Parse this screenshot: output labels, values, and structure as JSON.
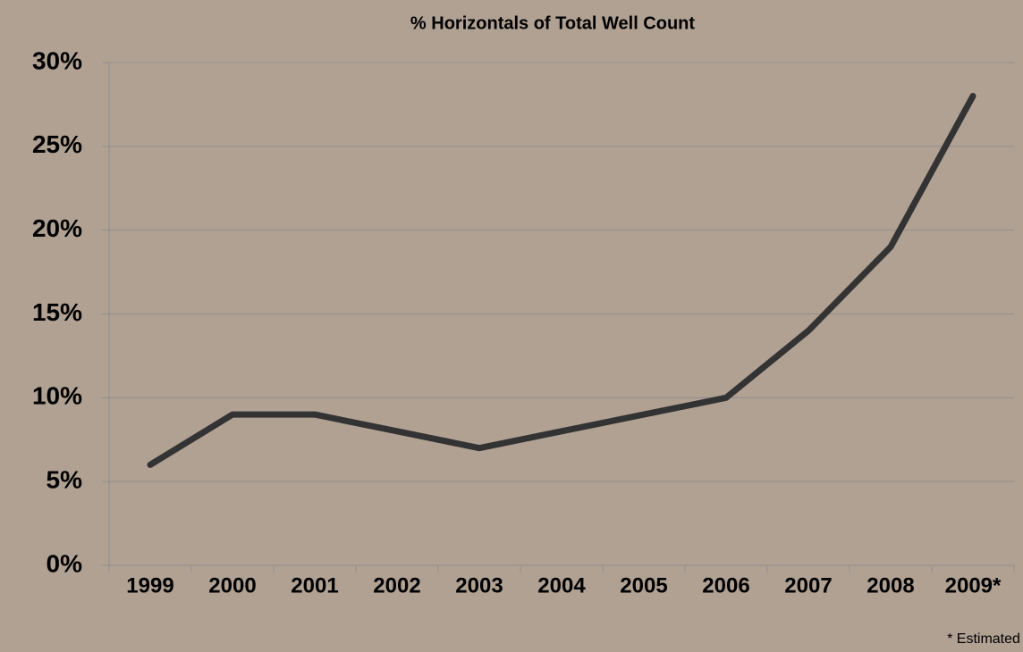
{
  "chart_data": {
    "type": "line",
    "title": "% Horizontals of Total Well Count",
    "categories": [
      "1999",
      "2000",
      "2001",
      "2002",
      "2003",
      "2004",
      "2005",
      "2006",
      "2007",
      "2008",
      "2009*"
    ],
    "series": [
      {
        "name": "% Horizontals",
        "color": "#333333",
        "values": [
          6,
          9,
          9,
          8,
          7,
          8,
          9,
          10,
          14,
          19,
          28
        ]
      }
    ],
    "ylim": [
      0,
      30
    ],
    "yticks": [
      {
        "value": 0,
        "label": "0%"
      },
      {
        "value": 5,
        "label": "5%"
      },
      {
        "value": 10,
        "label": "10%"
      },
      {
        "value": 15,
        "label": "15%"
      },
      {
        "value": 20,
        "label": "20%"
      },
      {
        "value": 25,
        "label": "25%"
      },
      {
        "value": 30,
        "label": "30%"
      }
    ],
    "grid": true,
    "annotation": "* Estimated"
  }
}
